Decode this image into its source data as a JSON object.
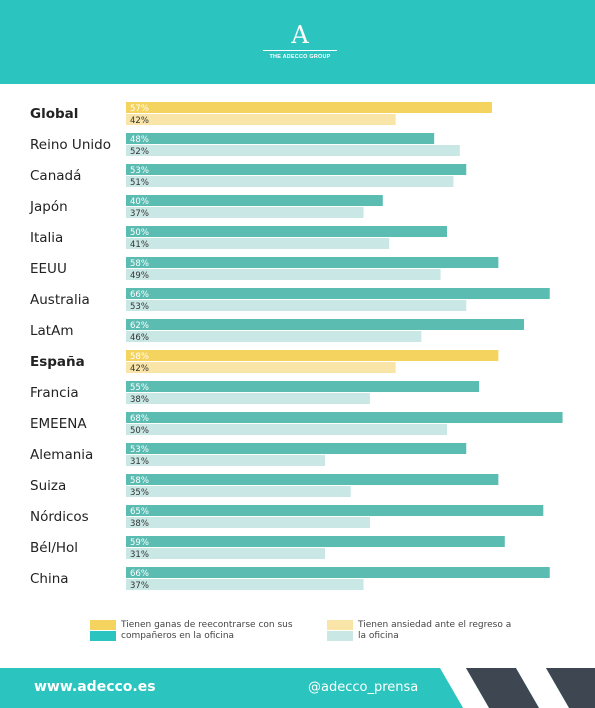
{
  "brand": {
    "logo_mark": "A",
    "logo_text": "THE ADECCO GROUP"
  },
  "colors": {
    "header": "#2bc4be",
    "dark": "#3d4651",
    "series1": "#5bbcb2",
    "series2": "#c9e8e5",
    "highlight1": "#f4d35e",
    "highlight2": "#f9e5a8"
  },
  "chart_data": {
    "type": "bar",
    "orientation": "horizontal",
    "categories": [
      "Global",
      "Reino Unido",
      "Canadá",
      "Japón",
      "Italia",
      "EEUU",
      "Australia",
      "LatAm",
      "España",
      "Francia",
      "EMEENA",
      "Alemania",
      "Suiza",
      "Nórdicos",
      "Bél/Hol",
      "China"
    ],
    "highlighted": [
      "Global",
      "España"
    ],
    "series": [
      {
        "values": [
          57,
          48,
          53,
          40,
          50,
          58,
          66,
          62,
          58,
          55,
          68,
          53,
          58,
          65,
          59,
          66
        ]
      },
      {
        "values": [
          42,
          52,
          51,
          37,
          41,
          49,
          53,
          46,
          42,
          38,
          50,
          31,
          35,
          38,
          31,
          37
        ]
      }
    ],
    "xlim": [
      0,
      70
    ],
    "grid": false,
    "legend_position": "bottom"
  },
  "legend": {
    "item1": "Tienen ganas de reecontrarse con sus compañeros en la oficina",
    "item2": "Tienen ansiedad ante el regreso a la oficina"
  },
  "footer": {
    "website": "www.adecco.es",
    "handle": "@adecco_prensa"
  }
}
